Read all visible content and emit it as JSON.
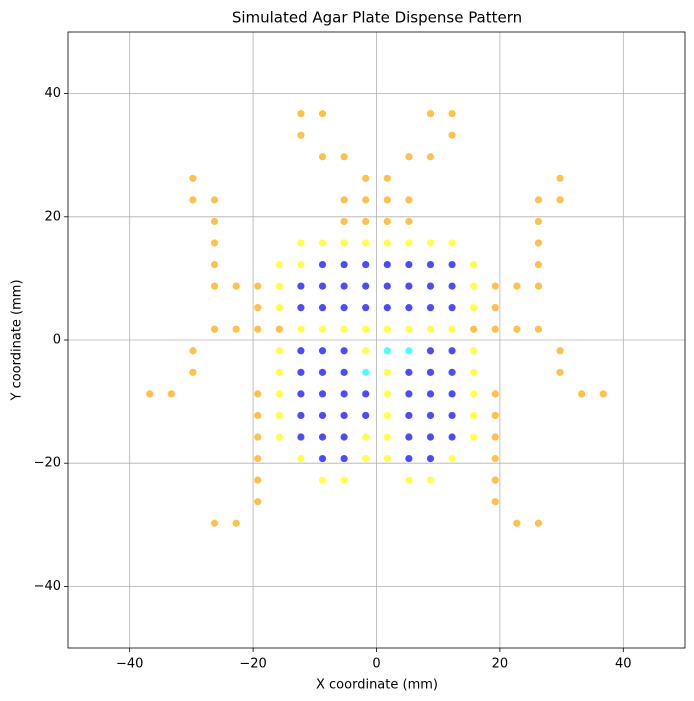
{
  "chart_data": {
    "type": "scatter",
    "title": "Simulated Agar Plate Dispense Pattern",
    "x_label": "X coordinate (mm)",
    "y_label": "Y coordinate (mm)",
    "xlim": [
      -50,
      50
    ],
    "ylim": [
      -50,
      50
    ],
    "xticks": [
      {
        "value": -40,
        "label": "−40"
      },
      {
        "value": -20,
        "label": "−20"
      },
      0,
      20,
      40
    ],
    "yticks": [
      {
        "value": -40,
        "label": "−40"
      },
      {
        "value": -20,
        "label": "−20"
      },
      0,
      20,
      40
    ],
    "grid": true,
    "alpha": 0.7,
    "series": [
      {
        "color": "#ffa500",
        "x": [
          -12.25,
          -8.75,
          8.75,
          12.25,
          -12.25,
          12.25,
          -8.75,
          -5.25,
          5.25,
          8.75,
          -29.75,
          -1.75,
          1.75,
          29.75,
          -29.75,
          -26.25,
          -5.25,
          -1.75,
          1.75,
          5.25,
          26.25,
          29.75,
          -26.25,
          -5.25,
          -1.75,
          1.75,
          5.25,
          26.25,
          -26.25,
          26.25,
          -26.25,
          26.25,
          -26.25,
          -22.75,
          -19.25,
          19.25,
          22.75,
          26.25,
          -19.25,
          19.25,
          -26.25,
          -22.75,
          -19.25,
          -15.75,
          15.75,
          19.25,
          22.75,
          26.25,
          -29.75,
          29.75,
          -29.75,
          29.75,
          -36.75,
          -33.25,
          -19.25,
          19.25,
          33.25,
          36.75,
          -19.25,
          19.25,
          -19.25,
          19.25,
          -19.25,
          19.25,
          -19.25,
          19.25,
          -19.25,
          19.25,
          -26.25,
          -22.75,
          22.75,
          26.25
        ],
        "values": [
          36.75,
          36.75,
          36.75,
          36.75,
          33.25,
          33.25,
          29.75,
          29.75,
          29.75,
          29.75,
          26.25,
          26.25,
          26.25,
          26.25,
          22.75,
          22.75,
          22.75,
          22.75,
          22.75,
          22.75,
          22.75,
          22.75,
          19.25,
          19.25,
          19.25,
          19.25,
          19.25,
          19.25,
          15.75,
          15.75,
          12.25,
          12.25,
          8.75,
          8.75,
          8.75,
          8.75,
          8.75,
          8.75,
          5.25,
          5.25,
          1.75,
          1.75,
          1.75,
          1.75,
          1.75,
          1.75,
          1.75,
          1.75,
          -1.75,
          -1.75,
          -5.25,
          -5.25,
          -8.75,
          -8.75,
          -8.75,
          -8.75,
          -8.75,
          -8.75,
          -12.25,
          -12.25,
          -15.75,
          -15.75,
          -19.25,
          -19.25,
          -22.75,
          -22.75,
          -26.25,
          -26.25,
          -29.75,
          -29.75,
          -29.75,
          -29.75
        ]
      },
      {
        "color": "#ffff00",
        "x": [
          -12.25,
          -8.75,
          -5.25,
          -1.75,
          1.75,
          5.25,
          8.75,
          12.25,
          -15.75,
          -12.25,
          15.75,
          -15.75,
          15.75,
          -15.75,
          15.75,
          -12.25,
          -8.75,
          -5.25,
          -1.75,
          1.75,
          5.25,
          8.75,
          12.25,
          -15.75,
          -1.75,
          15.75,
          -15.75,
          1.75,
          15.75,
          -15.75,
          1.75,
          15.75,
          -15.75,
          1.75,
          15.75,
          -15.75,
          -1.75,
          1.75,
          15.75,
          -12.25,
          -1.75,
          1.75,
          12.25,
          -8.75,
          -5.25,
          5.25,
          8.75
        ],
        "values": [
          15.75,
          15.75,
          15.75,
          15.75,
          15.75,
          15.75,
          15.75,
          15.75,
          12.25,
          12.25,
          12.25,
          8.75,
          8.75,
          5.25,
          5.25,
          1.75,
          1.75,
          1.75,
          1.75,
          1.75,
          1.75,
          1.75,
          1.75,
          -1.75,
          -1.75,
          -1.75,
          -5.25,
          -5.25,
          -5.25,
          -8.75,
          -8.75,
          -8.75,
          -12.25,
          -12.25,
          -12.25,
          -15.75,
          -15.75,
          -15.75,
          -15.75,
          -19.25,
          -19.25,
          -19.25,
          -19.25,
          -22.75,
          -22.75,
          -22.75,
          -22.75
        ]
      },
      {
        "color": "#0000ff",
        "x": [
          -8.75,
          -5.25,
          -1.75,
          1.75,
          5.25,
          8.75,
          12.25,
          -12.25,
          -8.75,
          -5.25,
          -1.75,
          1.75,
          5.25,
          8.75,
          12.25,
          -12.25,
          -8.75,
          -5.25,
          -1.75,
          1.75,
          5.25,
          8.75,
          12.25,
          -12.25,
          -8.75,
          -5.25,
          8.75,
          12.25,
          -12.25,
          -8.75,
          -5.25,
          5.25,
          8.75,
          12.25,
          -12.25,
          -8.75,
          -5.25,
          -1.75,
          5.25,
          8.75,
          12.25,
          -12.25,
          -8.75,
          -5.25,
          -1.75,
          5.25,
          8.75,
          12.25,
          -12.25,
          -8.75,
          -5.25,
          5.25,
          8.75,
          12.25,
          -8.75,
          -5.25,
          5.25,
          8.75
        ],
        "values": [
          12.25,
          12.25,
          12.25,
          12.25,
          12.25,
          12.25,
          12.25,
          8.75,
          8.75,
          8.75,
          8.75,
          8.75,
          8.75,
          8.75,
          8.75,
          5.25,
          5.25,
          5.25,
          5.25,
          5.25,
          5.25,
          5.25,
          5.25,
          -1.75,
          -1.75,
          -1.75,
          -1.75,
          -1.75,
          -5.25,
          -5.25,
          -5.25,
          -5.25,
          -5.25,
          -5.25,
          -8.75,
          -8.75,
          -8.75,
          -8.75,
          -8.75,
          -8.75,
          -8.75,
          -12.25,
          -12.25,
          -12.25,
          -12.25,
          -12.25,
          -12.25,
          -12.25,
          -15.75,
          -15.75,
          -15.75,
          -15.75,
          -15.75,
          -15.75,
          -19.25,
          -19.25,
          -19.25,
          -19.25
        ]
      },
      {
        "color": "#00ffff",
        "x": [
          1.75,
          5.25,
          -1.75
        ],
        "values": [
          -1.75,
          -1.75,
          -5.25
        ]
      }
    ]
  }
}
